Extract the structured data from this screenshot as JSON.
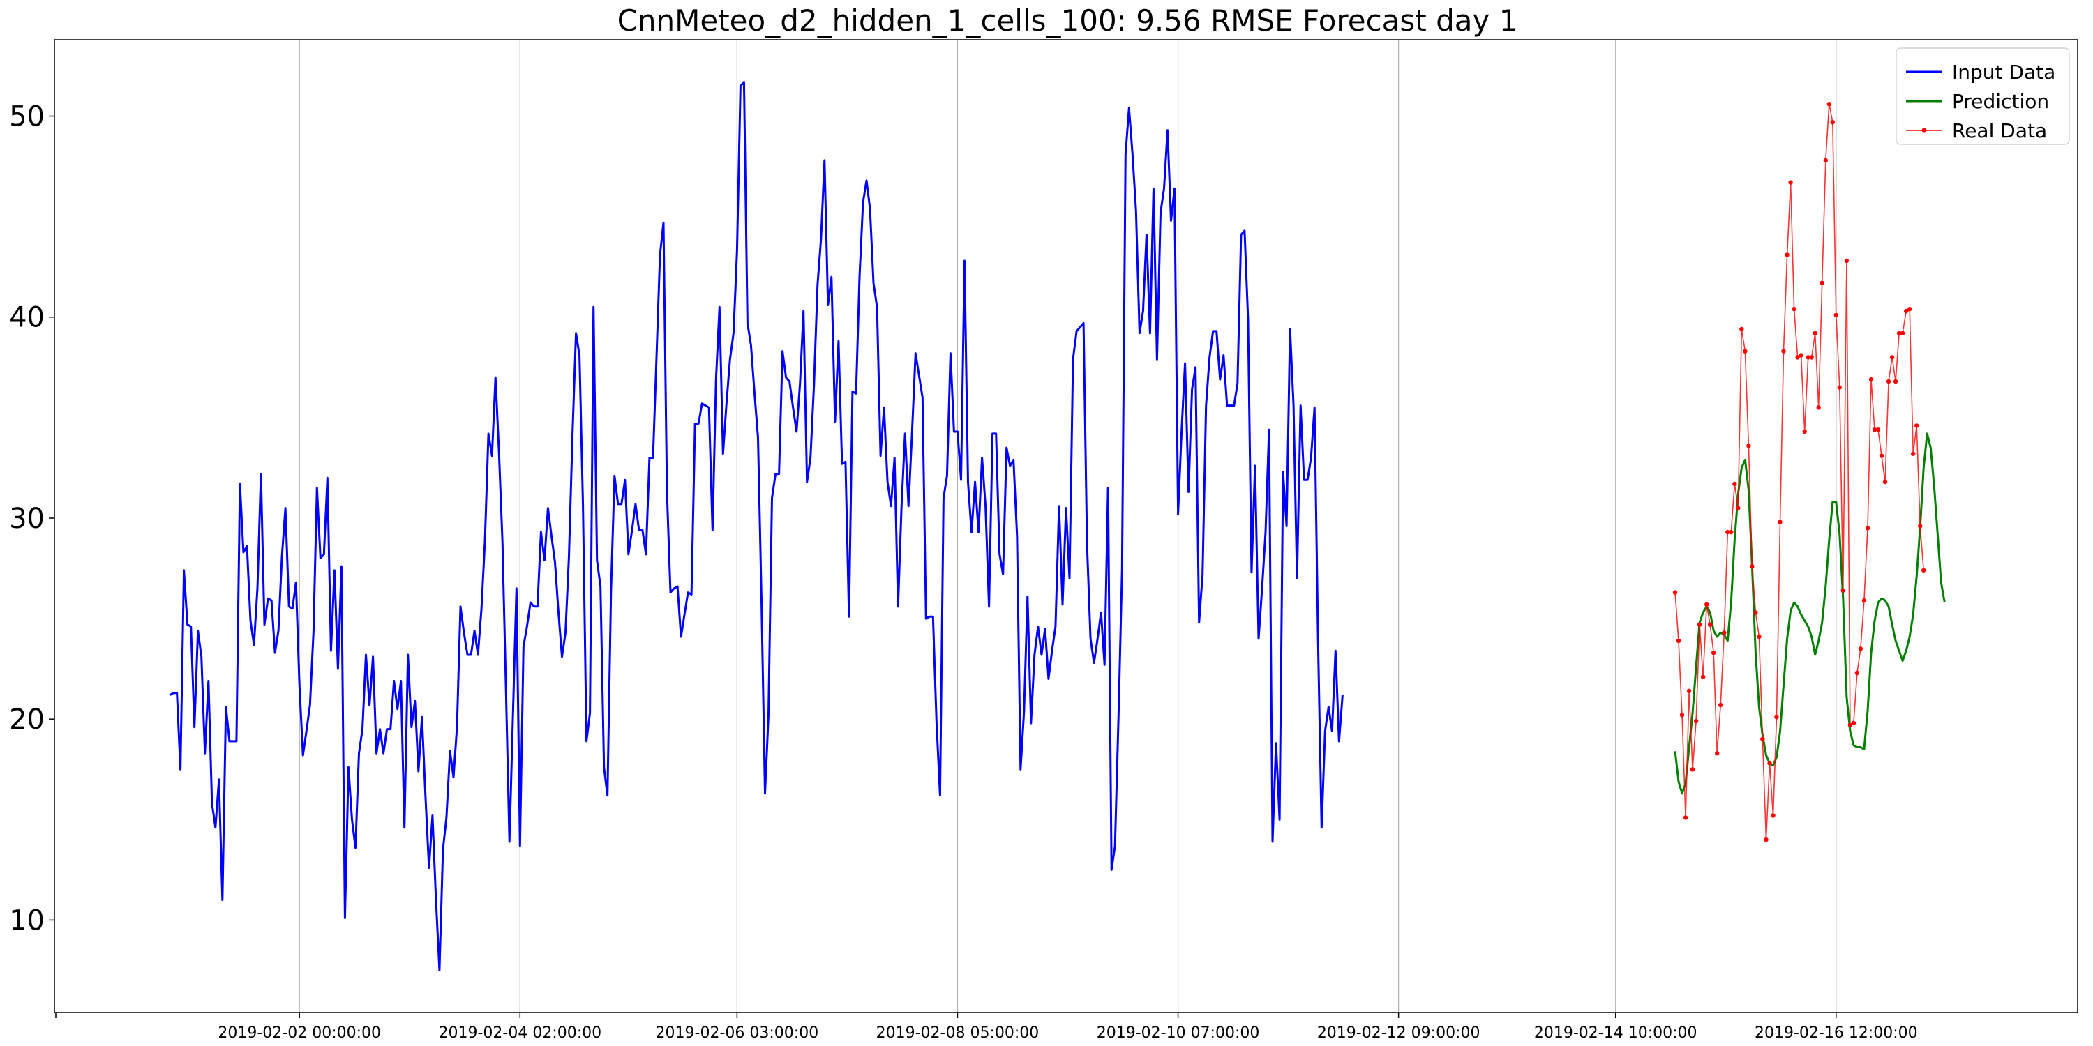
{
  "chart_data": {
    "type": "line",
    "title": "CnnMeteo_d2_hidden_1_cells_100: 9.56 RMSE Forecast day 1",
    "xlabel": "",
    "ylabel": "",
    "ylim": [
      5.4,
      53.8
    ],
    "y_ticks": [
      10,
      20,
      30,
      40,
      50
    ],
    "x_axis": "date",
    "x_start": "2019-01-31 00:00",
    "step_hours": 1.0,
    "x_range_steps": [
      -8,
      570
    ],
    "x_ticks": [
      {
        "label": "2019-02-02 00:00:00",
        "step": 62
      },
      {
        "label": "2019-02-04 02:00:00",
        "step": 125
      },
      {
        "label": "2019-02-06 03:00:00",
        "step": 187
      },
      {
        "label": "2019-02-08 05:00:00",
        "step": 250
      },
      {
        "label": "2019-02-10 07:00:00",
        "step": 313
      },
      {
        "label": "2019-02-12 09:00:00",
        "step": 376
      },
      {
        "label": "2019-02-14 10:00:00",
        "step": 438
      },
      {
        "label": "2019-02-16 12:00:00",
        "step": 501
      }
    ],
    "grid": "vertical",
    "legend_position": "top-right",
    "series": [
      {
        "name": "Input Data",
        "color": "#0000ff",
        "marker": "none",
        "start_step": 25,
        "values": [
          21.2,
          21.3,
          21.3,
          17.5,
          27.4,
          24.7,
          24.6,
          19.6,
          24.4,
          23.1,
          18.3,
          21.9,
          15.8,
          14.6,
          17.0,
          11.0,
          20.6,
          18.9,
          18.9,
          18.9,
          31.7,
          28.3,
          28.6,
          24.9,
          23.7,
          26.5,
          32.2,
          24.7,
          26.0,
          25.9,
          23.3,
          24.4,
          28.1,
          30.5,
          25.6,
          25.5,
          26.8,
          21.7,
          18.2,
          19.4,
          20.7,
          24.3,
          31.5,
          28.0,
          28.2,
          32.0,
          23.4,
          27.4,
          22.5,
          27.6,
          10.1,
          17.6,
          15.0,
          13.6,
          18.3,
          19.5,
          23.2,
          20.7,
          23.1,
          18.3,
          19.5,
          18.3,
          19.5,
          19.5,
          21.9,
          20.5,
          21.9,
          14.6,
          23.2,
          19.6,
          20.9,
          17.4,
          20.1,
          16.2,
          12.6,
          15.2,
          11.0,
          7.5,
          13.5,
          15.1,
          18.4,
          17.1,
          19.6,
          25.6,
          24.3,
          23.2,
          23.2,
          24.4,
          23.2,
          25.5,
          28.9,
          34.2,
          33.1,
          37.0,
          33.3,
          28.8,
          21.5,
          13.9,
          20.3,
          26.5,
          13.7,
          23.6,
          24.6,
          25.8,
          25.6,
          25.6,
          29.3,
          27.9,
          30.5,
          29.1,
          27.8,
          25.3,
          23.1,
          24.3,
          28.1,
          34.2,
          39.2,
          38.1,
          30.6,
          18.9,
          20.3,
          40.5,
          27.9,
          26.6,
          17.6,
          16.2,
          26.4,
          32.1,
          30.7,
          30.7,
          31.9,
          28.2,
          29.4,
          30.7,
          29.4,
          29.4,
          28.2,
          33.0,
          33.0,
          38.0,
          43.1,
          44.7,
          31.3,
          26.3,
          26.5,
          26.6,
          24.1,
          25.2,
          26.3,
          26.2,
          34.7,
          34.7,
          35.7,
          35.6,
          35.5,
          29.4,
          36.9,
          40.5,
          33.2,
          35.7,
          37.9,
          39.2,
          43.3,
          51.5,
          51.7,
          39.7,
          38.6,
          36.2,
          34.0,
          25.9,
          16.3,
          20.2,
          31.0,
          32.2,
          32.2,
          38.3,
          37.0,
          36.8,
          35.5,
          34.3,
          36.7,
          40.3,
          31.8,
          33.0,
          36.7,
          41.6,
          43.9,
          47.8,
          40.6,
          42.0,
          34.8,
          38.8,
          32.7,
          32.8,
          25.1,
          36.3,
          36.2,
          42.0,
          45.7,
          46.8,
          45.4,
          41.7,
          40.5,
          33.1,
          35.5,
          31.8,
          30.6,
          33.0,
          25.6,
          30.6,
          34.2,
          30.6,
          34.2,
          38.2,
          37.1,
          36.0,
          25.0,
          25.1,
          25.1,
          19.8,
          16.2,
          31.0,
          32.1,
          38.2,
          34.3,
          34.3,
          31.9,
          42.8,
          31.8,
          29.3,
          31.8,
          29.3,
          33.0,
          30.6,
          25.6,
          34.2,
          34.2,
          28.2,
          27.2,
          33.5,
          32.6,
          32.9,
          29.1,
          17.5,
          20.4,
          26.1,
          19.8,
          23.2,
          24.6,
          23.2,
          24.5,
          22.0,
          23.4,
          24.6,
          30.6,
          25.7,
          30.5,
          27.0,
          37.9,
          39.3,
          39.5,
          39.7,
          28.7,
          24.0,
          22.8,
          24.0,
          25.3,
          22.7,
          31.5,
          12.5,
          13.7,
          20.2,
          27.4,
          48.1,
          50.4,
          48.1,
          45.3,
          39.2,
          40.3,
          44.1,
          39.2,
          46.4,
          37.9,
          45.2,
          46.4,
          49.3,
          44.8,
          46.4,
          30.2,
          34.3,
          37.7,
          31.3,
          36.4,
          37.5,
          24.8,
          27.2,
          35.6,
          38.0,
          39.3,
          39.3,
          36.9,
          38.1,
          35.6,
          35.6,
          35.6,
          36.7,
          44.1,
          44.3,
          39.9,
          27.3,
          32.6,
          24.0,
          26.5,
          29.3,
          34.4,
          13.9,
          18.8,
          15.0,
          32.3,
          29.6,
          39.4,
          35.6,
          27.0,
          35.6,
          31.9,
          31.9,
          33.0,
          35.5,
          24.0,
          14.6,
          19.4,
          20.6,
          19.4,
          23.4,
          18.9,
          21.2
        ]
      },
      {
        "name": "Prediction",
        "color": "#008000",
        "marker": "none",
        "start_step": 455,
        "values": [
          18.4,
          16.9,
          16.3,
          16.8,
          18.6,
          20.3,
          22.6,
          24.8,
          25.3,
          25.6,
          25.3,
          24.4,
          24.1,
          24.3,
          24.2,
          23.9,
          25.8,
          28.9,
          31.2,
          32.5,
          32.9,
          31.4,
          27.6,
          23.3,
          20.6,
          19.2,
          18.2,
          17.8,
          17.7,
          18.1,
          19.4,
          21.7,
          24.0,
          25.4,
          25.8,
          25.6,
          25.2,
          24.9,
          24.6,
          24.1,
          23.2,
          23.9,
          24.8,
          26.6,
          28.9,
          30.8,
          30.8,
          29.2,
          26.0,
          21.1,
          19.4,
          18.7,
          18.6,
          18.6,
          18.5,
          20.4,
          23.3,
          24.9,
          25.8,
          26.0,
          25.9,
          25.6,
          24.7,
          23.9,
          23.4,
          22.9,
          23.4,
          24.1,
          25.2,
          27.1,
          29.5,
          32.5,
          34.2,
          33.5,
          31.6,
          29.2,
          26.8,
          25.8
        ]
      },
      {
        "name": "Real Data",
        "color": "#ff0000",
        "marker": "dot",
        "start_step": 455,
        "values": [
          26.3,
          23.9,
          20.2,
          15.1,
          21.4,
          17.5,
          19.9,
          24.7,
          22.1,
          25.7,
          24.7,
          23.3,
          18.3,
          20.7,
          24.3,
          29.3,
          29.3,
          31.7,
          30.5,
          39.4,
          38.3,
          33.6,
          27.6,
          25.3,
          24.1,
          19.0,
          14.0,
          17.8,
          15.2,
          20.1,
          29.8,
          38.3,
          43.1,
          46.7,
          40.4,
          38.0,
          38.1,
          34.3,
          38.0,
          38.0,
          39.2,
          35.5,
          41.7,
          47.8,
          50.6,
          49.7,
          40.1,
          36.5,
          26.4,
          42.8,
          19.7,
          19.8,
          22.3,
          23.5,
          25.9,
          29.5,
          36.9,
          34.4,
          34.4,
          33.1,
          31.8,
          36.8,
          38.0,
          36.8,
          39.2,
          39.2,
          40.3,
          40.4,
          33.2,
          34.6,
          29.6,
          27.4
        ]
      }
    ]
  }
}
